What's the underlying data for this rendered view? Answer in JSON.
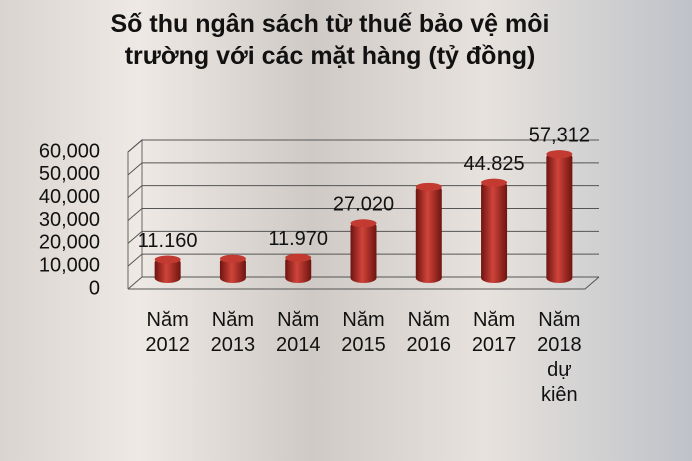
{
  "chart_data": {
    "type": "bar",
    "title": "Số thu ngân sách từ thuế bảo vệ môi trường với các mặt hàng (tỷ đồng)",
    "categories": [
      "Năm 2012",
      "Năm 2013",
      "Năm 2014",
      "Năm 2015",
      "Năm 2016",
      "Năm 2017",
      "Năm 2018 dự kiên"
    ],
    "values": [
      11160,
      11500,
      11970,
      27020,
      43000,
      44825,
      57312
    ],
    "value_labels": [
      "11.160",
      null,
      "11.970",
      "27.020",
      null,
      "44.825",
      "57,312"
    ],
    "color": "#b22a22",
    "ylim": [
      0,
      60000
    ],
    "yticks": [
      0,
      {
        "value": 10000,
        "label": "10,000"
      },
      {
        "value": 20000,
        "label": "20,000"
      },
      {
        "value": 30000,
        "label": "30,000"
      },
      {
        "value": 40000,
        "label": "40,000"
      },
      {
        "value": 50000,
        "label": "50,000"
      },
      {
        "value": 60000,
        "label": "60,000"
      }
    ],
    "grid": true
  }
}
